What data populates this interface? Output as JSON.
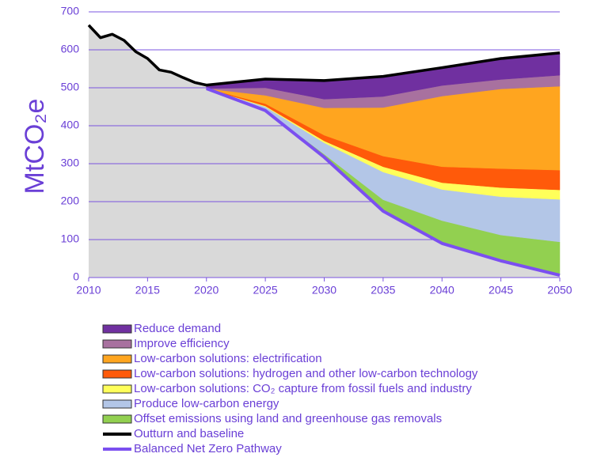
{
  "chart_data": {
    "type": "area",
    "ylabel": "MtCO₂e",
    "x": [
      2010,
      2011,
      2012,
      2013,
      2014,
      2015,
      2016,
      2017,
      2018,
      2019,
      2020,
      2025,
      2030,
      2035,
      2040,
      2045,
      2050
    ],
    "xlim": [
      2010,
      2050
    ],
    "xticks": [
      2010,
      2015,
      2020,
      2025,
      2030,
      2035,
      2040,
      2045,
      2050
    ],
    "ylim": [
      0,
      700
    ],
    "yticks": [
      0,
      100,
      200,
      300,
      400,
      500,
      600,
      700
    ],
    "grid": true,
    "stacked": true,
    "series": [
      {
        "name": "Reduce demand",
        "type": "area",
        "color": "#7030a0",
        "values": [
          null,
          null,
          null,
          null,
          null,
          null,
          null,
          null,
          null,
          null,
          9,
          23,
          49,
          53,
          47,
          55,
          59
        ]
      },
      {
        "name": "Improve efficiency",
        "type": "area",
        "color": "#a8719f",
        "values": [
          null,
          null,
          null,
          null,
          null,
          null,
          null,
          null,
          null,
          null,
          0,
          20,
          23,
          29,
          28,
          25,
          29
        ]
      },
      {
        "name": "Low-carbon solutions: electrification",
        "type": "area",
        "color": "#ffa51f",
        "values": [
          null,
          null,
          null,
          null,
          null,
          null,
          null,
          null,
          null,
          null,
          0,
          22,
          72,
          128,
          186,
          210,
          221
        ]
      },
      {
        "name": "Low-carbon solutions: hydrogen and other low-carbon technology",
        "type": "area",
        "color": "#ff5a0a",
        "values": [
          null,
          null,
          null,
          null,
          null,
          null,
          null,
          null,
          null,
          null,
          0,
          6,
          15,
          28,
          42,
          50,
          52
        ]
      },
      {
        "name": "Low-carbon solutions: CO₂ capture from fossil fuels and industry",
        "type": "area",
        "color": "#ffff5a",
        "values": [
          null,
          null,
          null,
          null,
          null,
          null,
          null,
          null,
          null,
          null,
          0,
          2,
          5,
          14,
          18,
          24,
          25
        ]
      },
      {
        "name": "Produce low-carbon energy",
        "type": "area",
        "color": "#b3c6e7",
        "values": [
          null,
          null,
          null,
          null,
          null,
          null,
          null,
          null,
          null,
          null,
          0,
          8,
          30,
          73,
          82,
          101,
          112
        ]
      },
      {
        "name": "Offset emissions using land and greenhouse gas removals",
        "type": "area",
        "color": "#92d050",
        "values": [
          null,
          null,
          null,
          null,
          null,
          null,
          null,
          null,
          null,
          null,
          0,
          2,
          8,
          30,
          60,
          68,
          88
        ]
      },
      {
        "name": "Outturn and baseline",
        "type": "line",
        "color": "#000000",
        "values": [
          665,
          632,
          641,
          625,
          595,
          577,
          547,
          541,
          527,
          514,
          507,
          523,
          519,
          530,
          553,
          577,
          592
        ]
      },
      {
        "name": "Balanced Net Zero Pathway",
        "type": "line",
        "base": true,
        "color": "#7b4ff0",
        "values": [
          null,
          null,
          null,
          null,
          null,
          null,
          null,
          null,
          null,
          null,
          498,
          440,
          317,
          175,
          90,
          44,
          6
        ]
      }
    ]
  }
}
